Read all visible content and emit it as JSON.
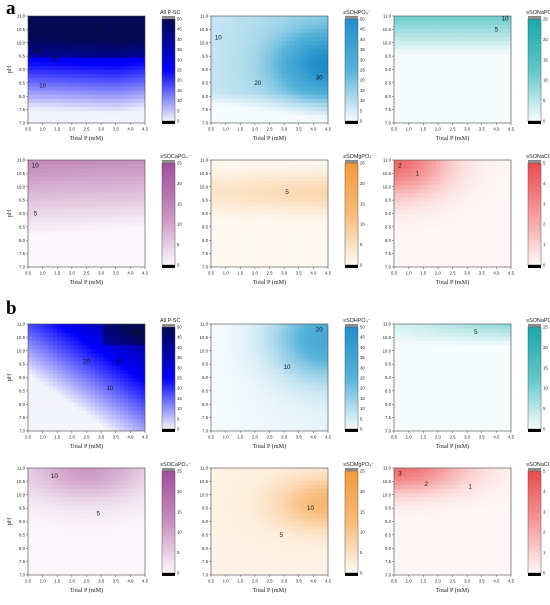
{
  "panel_labels": {
    "a": "a",
    "b": "b"
  },
  "chart_data": [
    {
      "panel": "a",
      "type": "heatmap",
      "colorbar_title": "All P-SC",
      "colormap": [
        "#f4f4fb",
        "#0000ff",
        "#040850"
      ],
      "xlabel": "Total P (mM)",
      "ylabel": "pH",
      "xlim": [
        0.5,
        4.5
      ],
      "ylim": [
        7.0,
        11.0
      ],
      "x_ticks": [
        "0.5",
        "1.0",
        "1.5",
        "2.0",
        "2.5",
        "3.0",
        "3.5",
        "4.0",
        "4.5"
      ],
      "y_ticks": [
        "7.0",
        "7.5",
        "8.0",
        "8.5",
        "9.0",
        "9.5",
        "10.0",
        "10.5",
        "11.0"
      ],
      "cbar_ticks": [
        "0",
        "5",
        "10",
        "15",
        "20",
        "25",
        "30",
        "35",
        "40",
        "45",
        "50"
      ],
      "contour_labels": [
        {
          "text": "40",
          "x": 2.9,
          "y": 10.5
        },
        {
          "text": "20",
          "x": 0.8,
          "y": 9.7
        },
        {
          "text": "30",
          "x": 1.4,
          "y": 9.4
        },
        {
          "text": "10",
          "x": 1.0,
          "y": 8.4
        }
      ]
    },
    {
      "panel": "a",
      "type": "heatmap",
      "colorbar_title": "≡SOHPO₄⁻",
      "colormap": [
        "#f6fbfd",
        "#56b3d9",
        "#1f8fcc"
      ],
      "xlabel": "Total P (mM)",
      "ylabel": "",
      "xlim": [
        0.5,
        4.5
      ],
      "ylim": [
        7.0,
        11.0
      ],
      "x_ticks": [
        "0.5",
        "1.0",
        "1.5",
        "2.0",
        "2.5",
        "3.0",
        "3.5",
        "4.0",
        "4.5"
      ],
      "y_ticks": [
        "7.0",
        "7.5",
        "8.0",
        "8.5",
        "9.0",
        "9.5",
        "10.0",
        "10.5",
        "11.0"
      ],
      "cbar_ticks": [
        "0",
        "5",
        "10",
        "15",
        "20",
        "25",
        "30",
        "35",
        "40",
        "45",
        "50"
      ],
      "contour_labels": [
        {
          "text": "10",
          "x": 0.75,
          "y": 10.2
        },
        {
          "text": "20",
          "x": 2.1,
          "y": 8.5
        },
        {
          "text": "30",
          "x": 4.2,
          "y": 8.7
        }
      ]
    },
    {
      "panel": "a",
      "type": "heatmap",
      "colorbar_title": "≡SONaPO₄⁻",
      "colormap": [
        "#f6fcfc",
        "#5fc7c9",
        "#1aa7a9"
      ],
      "xlabel": "Total P (mM)",
      "ylabel": "",
      "xlim": [
        0.5,
        4.5
      ],
      "ylim": [
        7.0,
        11.0
      ],
      "x_ticks": [
        "0.5",
        "1.0",
        "1.5",
        "2.0",
        "2.5",
        "3.0",
        "3.5",
        "4.0",
        "4.5"
      ],
      "y_ticks": [
        "7.0",
        "7.5",
        "8.0",
        "8.5",
        "9.0",
        "9.5",
        "10.0",
        "10.5",
        "11.0"
      ],
      "cbar_ticks": [
        "0",
        "5",
        "10",
        "15",
        "20",
        "25"
      ],
      "contour_labels": [
        {
          "text": "10",
          "x": 4.3,
          "y": 10.9
        },
        {
          "text": "5",
          "x": 4.0,
          "y": 10.5
        }
      ]
    },
    {
      "panel": "a",
      "type": "heatmap",
      "colorbar_title": "≡SOCaPO₄⁻",
      "colormap": [
        "#fbf7fb",
        "#c78fbf",
        "#a24e9a"
      ],
      "xlabel": "Total P (mM)",
      "ylabel": "pH",
      "xlim": [
        0.5,
        4.5
      ],
      "ylim": [
        7.0,
        11.0
      ],
      "x_ticks": [
        "0.5",
        "1.0",
        "1.5",
        "2.0",
        "2.5",
        "3.0",
        "3.5",
        "4.0",
        "4.5"
      ],
      "y_ticks": [
        "7.0",
        "7.5",
        "8.0",
        "8.5",
        "9.0",
        "9.5",
        "10.0",
        "10.5",
        "11.0"
      ],
      "cbar_ticks": [
        "0",
        "5",
        "10",
        "15",
        "20",
        "25"
      ],
      "contour_labels": [
        {
          "text": "10",
          "x": 0.75,
          "y": 10.8
        },
        {
          "text": "5",
          "x": 0.75,
          "y": 9.0
        }
      ]
    },
    {
      "panel": "a",
      "type": "heatmap",
      "colorbar_title": "≡SOMgPO₄⁻",
      "colormap": [
        "#fff9f2",
        "#f8bb78",
        "#f39a3a"
      ],
      "xlabel": "Total P (mM)",
      "ylabel": "",
      "xlim": [
        0.5,
        4.5
      ],
      "ylim": [
        7.0,
        11.0
      ],
      "x_ticks": [
        "0.5",
        "1.0",
        "1.5",
        "2.0",
        "2.5",
        "3.0",
        "3.5",
        "4.0",
        "4.5"
      ],
      "y_ticks": [
        "7.0",
        "7.5",
        "8.0",
        "8.5",
        "9.0",
        "9.5",
        "10.0",
        "10.5",
        "11.0"
      ],
      "cbar_ticks": [
        "0",
        "5",
        "10",
        "15",
        "20",
        "25"
      ],
      "contour_labels": [
        {
          "text": "5",
          "x": 3.1,
          "y": 9.8
        }
      ]
    },
    {
      "panel": "a",
      "type": "heatmap",
      "colorbar_title": "≡SONaCO₃⁻",
      "colormap": [
        "#fff7f7",
        "#f59a9a",
        "#ea4a4d"
      ],
      "xlabel": "Total P (mM)",
      "ylabel": "",
      "xlim": [
        0.5,
        4.5
      ],
      "ylim": [
        7.0,
        11.0
      ],
      "x_ticks": [
        "0.5",
        "1.0",
        "1.5",
        "2.0",
        "2.5",
        "3.0",
        "3.5",
        "4.0",
        "4.5"
      ],
      "y_ticks": [
        "7.0",
        "7.5",
        "8.0",
        "8.5",
        "9.0",
        "9.5",
        "10.0",
        "10.5",
        "11.0"
      ],
      "cbar_ticks": [
        "0",
        "1",
        "2",
        "3",
        "4",
        "5"
      ],
      "contour_labels": [
        {
          "text": "2",
          "x": 0.7,
          "y": 10.8
        },
        {
          "text": "1",
          "x": 1.3,
          "y": 10.5
        }
      ]
    },
    {
      "panel": "b",
      "type": "heatmap",
      "colorbar_title": "All P-SC",
      "colormap": [
        "#f4f4fb",
        "#0000ff",
        "#040850"
      ],
      "xlabel": "Total P (mM)",
      "ylabel": "pH",
      "xlim": [
        0.5,
        4.5
      ],
      "ylim": [
        7.0,
        11.0
      ],
      "x_ticks": [
        "0.5",
        "1.0",
        "1.5",
        "2.0",
        "2.5",
        "3.0",
        "3.5",
        "4.0",
        "4.5"
      ],
      "y_ticks": [
        "7.0",
        "7.5",
        "8.0",
        "8.5",
        "9.0",
        "9.5",
        "10.0",
        "10.5",
        "11.0"
      ],
      "cbar_ticks": [
        "0",
        "5",
        "10",
        "15",
        "20",
        "25",
        "30",
        "35",
        "40",
        "45",
        "50"
      ],
      "contour_labels": [
        {
          "text": "40",
          "x": 4.2,
          "y": 10.7
        },
        {
          "text": "20",
          "x": 2.5,
          "y": 9.6
        },
        {
          "text": "30",
          "x": 3.6,
          "y": 9.6
        },
        {
          "text": "10",
          "x": 3.3,
          "y": 8.6
        }
      ]
    },
    {
      "panel": "b",
      "type": "heatmap",
      "colorbar_title": "≡SOHPO₄⁻",
      "colormap": [
        "#f6fbfd",
        "#56b3d9",
        "#1f8fcc"
      ],
      "xlabel": "Total P (mM)",
      "ylabel": "",
      "xlim": [
        0.5,
        4.5
      ],
      "ylim": [
        7.0,
        11.0
      ],
      "x_ticks": [
        "0.5",
        "1.0",
        "1.5",
        "2.0",
        "2.5",
        "3.0",
        "3.5",
        "4.0",
        "4.5"
      ],
      "y_ticks": [
        "7.0",
        "7.5",
        "8.0",
        "8.5",
        "9.0",
        "9.5",
        "10.0",
        "10.5",
        "11.0"
      ],
      "cbar_ticks": [
        "0",
        "5",
        "10",
        "15",
        "20",
        "25",
        "30",
        "35",
        "40",
        "45",
        "50"
      ],
      "contour_labels": [
        {
          "text": "20",
          "x": 4.2,
          "y": 10.8
        },
        {
          "text": "10",
          "x": 3.1,
          "y": 9.4
        }
      ]
    },
    {
      "panel": "b",
      "type": "heatmap",
      "colorbar_title": "≡SONaPO₄⁻",
      "colormap": [
        "#f6fcfc",
        "#5fc7c9",
        "#1aa7a9"
      ],
      "xlabel": "Total P (mM)",
      "ylabel": "",
      "xlim": [
        0.5,
        4.5
      ],
      "ylim": [
        7.0,
        11.0
      ],
      "x_ticks": [
        "0.5",
        "1.0",
        "1.5",
        "2.0",
        "2.5",
        "3.0",
        "3.5",
        "4.0",
        "4.5"
      ],
      "y_ticks": [
        "7.0",
        "7.5",
        "8.0",
        "8.5",
        "9.0",
        "9.5",
        "10.0",
        "10.5",
        "11.0"
      ],
      "cbar_ticks": [
        "0",
        "5",
        "10",
        "15",
        "20",
        "25"
      ],
      "contour_labels": [
        {
          "text": "5",
          "x": 3.3,
          "y": 10.7
        }
      ]
    },
    {
      "panel": "b",
      "type": "heatmap",
      "colorbar_title": "≡SOCaPO₄⁻",
      "colormap": [
        "#fbf7fb",
        "#c78fbf",
        "#a24e9a"
      ],
      "xlabel": "Total P (mM)",
      "ylabel": "pH",
      "xlim": [
        0.5,
        4.5
      ],
      "ylim": [
        7.0,
        11.0
      ],
      "x_ticks": [
        "0.5",
        "1.0",
        "1.5",
        "2.0",
        "2.5",
        "3.0",
        "3.5",
        "4.0",
        "4.5"
      ],
      "y_ticks": [
        "7.0",
        "7.5",
        "8.0",
        "8.5",
        "9.0",
        "9.5",
        "10.0",
        "10.5",
        "11.0"
      ],
      "cbar_ticks": [
        "0",
        "5",
        "10",
        "15",
        "20",
        "25"
      ],
      "contour_labels": [
        {
          "text": "10",
          "x": 1.4,
          "y": 10.7
        },
        {
          "text": "5",
          "x": 2.9,
          "y": 9.3
        }
      ]
    },
    {
      "panel": "b",
      "type": "heatmap",
      "colorbar_title": "≡SOMgPO₄⁻",
      "colormap": [
        "#fff9f2",
        "#f8bb78",
        "#f39a3a"
      ],
      "xlabel": "Total P (mM)",
      "ylabel": "",
      "xlim": [
        0.5,
        4.5
      ],
      "ylim": [
        7.0,
        11.0
      ],
      "x_ticks": [
        "0.5",
        "1.0",
        "1.5",
        "2.0",
        "2.5",
        "3.0",
        "3.5",
        "4.0",
        "4.5"
      ],
      "y_ticks": [
        "7.0",
        "7.5",
        "8.0",
        "8.5",
        "9.0",
        "9.5",
        "10.0",
        "10.5",
        "11.0"
      ],
      "cbar_ticks": [
        "0",
        "5",
        "10",
        "15",
        "20",
        "25"
      ],
      "contour_labels": [
        {
          "text": "10",
          "x": 3.9,
          "y": 9.5
        },
        {
          "text": "5",
          "x": 2.9,
          "y": 8.5
        }
      ]
    },
    {
      "panel": "b",
      "type": "heatmap",
      "colorbar_title": "≡SONaCO₃⁻",
      "colormap": [
        "#fff7f7",
        "#f59a9a",
        "#ea4a4d"
      ],
      "xlabel": "Total P (mM)",
      "ylabel": "",
      "xlim": [
        0.5,
        4.5
      ],
      "ylim": [
        7.0,
        11.0
      ],
      "x_ticks": [
        "0.5",
        "1.0",
        "1.5",
        "2.0",
        "2.5",
        "3.0",
        "3.5",
        "4.0",
        "4.5"
      ],
      "y_ticks": [
        "7.0",
        "7.5",
        "8.0",
        "8.5",
        "9.0",
        "9.5",
        "10.0",
        "10.5",
        "11.0"
      ],
      "cbar_ticks": [
        "0",
        "1",
        "2",
        "3",
        "4",
        "5"
      ],
      "contour_labels": [
        {
          "text": "3",
          "x": 0.7,
          "y": 10.8
        },
        {
          "text": "2",
          "x": 1.6,
          "y": 10.4
        },
        {
          "text": "1",
          "x": 3.1,
          "y": 10.3
        }
      ]
    }
  ]
}
